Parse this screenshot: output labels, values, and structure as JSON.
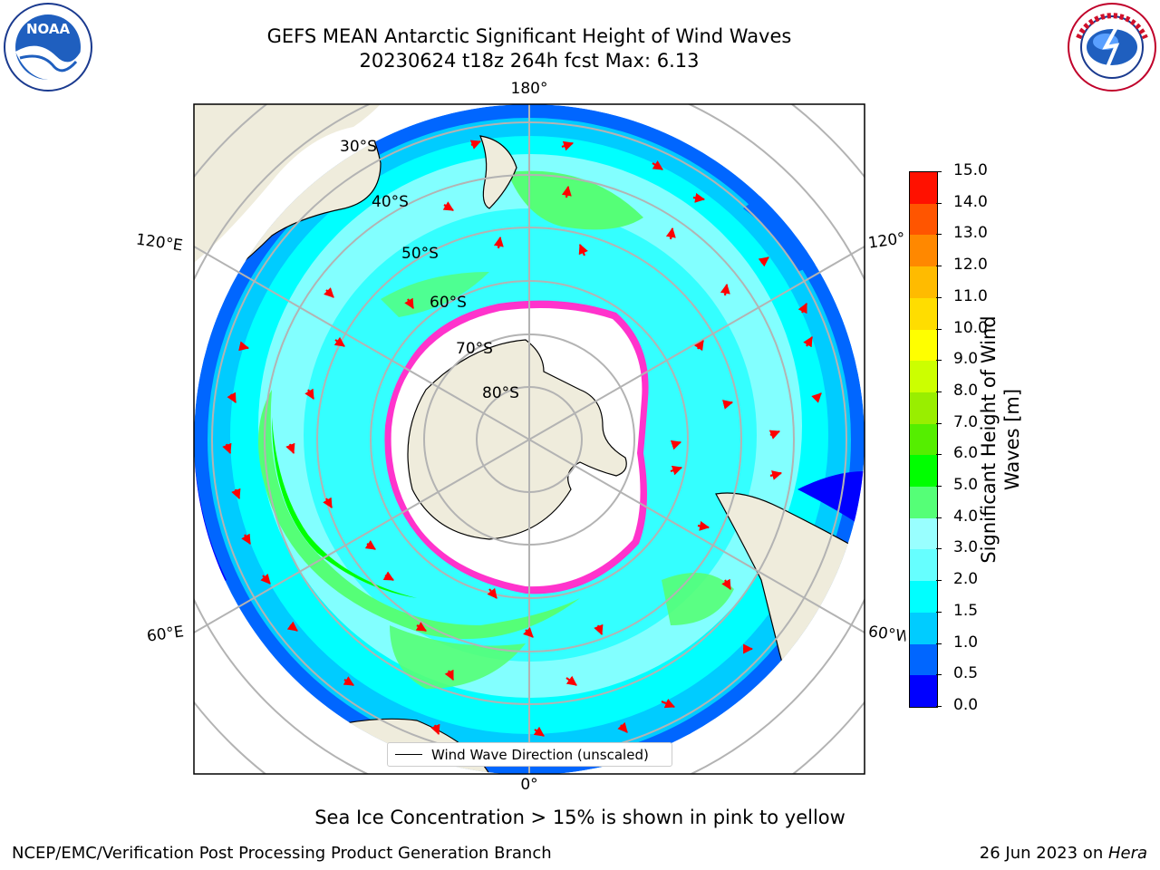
{
  "header": {
    "title_line1": "GEFS MEAN Antarctic Significant Height of Wind Waves",
    "title_line2": "20230624 t18z 264h fcst   Max: 6.13"
  },
  "logos": {
    "left_name": "noara-logo",
    "left_text": "NOAA",
    "left_ring_text": "NATIONAL OCEANIC AND ATMOSPHERIC ADMINISTRATION · U.S. DEPARTMENT OF COMMERCE",
    "right_name": "nws-logo",
    "right_ring_text": "NATIONAL WEATHER SERVICE"
  },
  "map": {
    "longitude_labels": {
      "top": "180°",
      "bottom": "0°",
      "upper_left": "120°E",
      "upper_right": "120°W",
      "lower_left": "60°E",
      "lower_right": "60°W"
    },
    "latitude_labels": [
      "30°S",
      "40°S",
      "50°S",
      "60°S",
      "70°S",
      "80°S"
    ],
    "legend_label": "Wind Wave Direction (unscaled)",
    "colors": {
      "ocean_light": "#00ffff",
      "ocean_pale": "#99ffff",
      "land": "#efecdc",
      "ice": "#ffffff",
      "ice_edge": "#ff33cc",
      "arrow": "#ff0000",
      "grid": "#b3b3b3"
    }
  },
  "colorbar": {
    "label_line1": "Significant Height of Wind",
    "label_line2": "Waves [m]",
    "ticks": [
      "0.0",
      "0.5",
      "1.0",
      "1.5",
      "2.0",
      "3.0",
      "4.0",
      "5.0",
      "6.0",
      "7.0",
      "8.0",
      "9.0",
      "10.0",
      "11.0",
      "12.0",
      "13.0",
      "14.0",
      "15.0"
    ],
    "colors": [
      "#0000ff",
      "#0066ff",
      "#00ccff",
      "#00ffff",
      "#66ffff",
      "#99ffff",
      "#55ff77",
      "#00ff00",
      "#55ee00",
      "#99ee00",
      "#ccff00",
      "#ffff00",
      "#ffdd00",
      "#ffbb00",
      "#ff8800",
      "#ff5500",
      "#ff1100"
    ]
  },
  "notes": {
    "ice_note": "Sea Ice Concentration > 15% is shown in pink to yellow"
  },
  "footer": {
    "left": "NCEP/EMC/Verification Post Processing Product Generation Branch",
    "right_prefix": "26 Jun 2023 on ",
    "right_italic": "Hera"
  }
}
